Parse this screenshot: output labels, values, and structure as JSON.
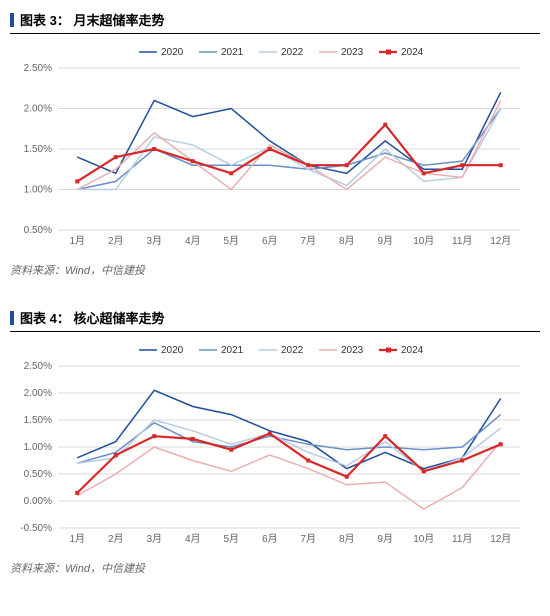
{
  "charts": [
    {
      "title_prefix": "图表 3：",
      "title": "月末超储率走势",
      "source": "资料来源：Wind，中信建投",
      "type": "line",
      "categories": [
        "1月",
        "2月",
        "3月",
        "4月",
        "5月",
        "6月",
        "7月",
        "8月",
        "9月",
        "10月",
        "11月",
        "12月"
      ],
      "ylim": [
        0.5,
        2.5
      ],
      "ytick_step": 0.5,
      "ysuffix": "%",
      "grid_color": "#d9d9d9",
      "background_color": "#ffffff",
      "title_bar_color": "#1f4e9c",
      "title_fontsize": 13,
      "label_fontsize": 10,
      "series": [
        {
          "name": "2020",
          "color": "#1f4e9c",
          "line_width": 1.5,
          "marker": "none",
          "values": [
            1.4,
            1.2,
            2.1,
            1.9,
            2.0,
            1.6,
            1.3,
            1.2,
            1.6,
            1.25,
            1.25,
            2.2
          ]
        },
        {
          "name": "2021",
          "color": "#6b8fc9",
          "line_width": 1.5,
          "marker": "none",
          "values": [
            1.0,
            1.1,
            1.5,
            1.3,
            1.3,
            1.3,
            1.25,
            1.3,
            1.45,
            1.3,
            1.35,
            2.0
          ]
        },
        {
          "name": "2022",
          "color": "#b8cce4",
          "line_width": 1.5,
          "marker": "none",
          "values": [
            1.0,
            1.0,
            1.65,
            1.55,
            1.3,
            1.52,
            1.25,
            1.05,
            1.5,
            1.1,
            1.15,
            2.0
          ]
        },
        {
          "name": "2023",
          "color": "#e9b0b0",
          "line_width": 1.5,
          "marker": "none",
          "values": [
            1.0,
            1.25,
            1.7,
            1.35,
            1.0,
            1.55,
            1.3,
            1.0,
            1.4,
            1.2,
            1.15,
            2.1
          ]
        },
        {
          "name": "2024",
          "color": "#d92626",
          "line_width": 2.2,
          "marker": "square",
          "marker_size": 4,
          "values": [
            1.1,
            1.4,
            1.5,
            1.35,
            1.2,
            1.5,
            1.3,
            1.3,
            1.8,
            1.2,
            1.3,
            1.3
          ]
        }
      ]
    },
    {
      "title_prefix": "图表 4：",
      "title": "核心超储率走势",
      "source": "资料来源：Wind，中信建投",
      "type": "line",
      "categories": [
        "1月",
        "2月",
        "3月",
        "4月",
        "5月",
        "6月",
        "7月",
        "8月",
        "9月",
        "10月",
        "11月",
        "12月"
      ],
      "ylim": [
        -0.5,
        2.5
      ],
      "ytick_step": 0.5,
      "ysuffix": "%",
      "grid_color": "#d9d9d9",
      "background_color": "#ffffff",
      "title_bar_color": "#1f4e9c",
      "title_fontsize": 13,
      "label_fontsize": 10,
      "series": [
        {
          "name": "2020",
          "color": "#1f4e9c",
          "line_width": 1.5,
          "marker": "none",
          "values": [
            0.8,
            1.1,
            2.05,
            1.75,
            1.6,
            1.3,
            1.1,
            0.6,
            0.9,
            0.6,
            0.8,
            1.9
          ]
        },
        {
          "name": "2021",
          "color": "#6b8fc9",
          "line_width": 1.5,
          "marker": "none",
          "values": [
            0.7,
            0.9,
            1.45,
            1.1,
            1.0,
            1.2,
            1.05,
            0.95,
            1.0,
            0.95,
            1.0,
            1.6
          ]
        },
        {
          "name": "2022",
          "color": "#b8cce4",
          "line_width": 1.5,
          "marker": "none",
          "values": [
            0.7,
            0.8,
            1.5,
            1.3,
            1.05,
            1.25,
            0.9,
            0.65,
            1.1,
            0.55,
            0.8,
            1.35
          ]
        },
        {
          "name": "2023",
          "color": "#e9b0b0",
          "line_width": 1.5,
          "marker": "none",
          "values": [
            0.1,
            0.5,
            1.0,
            0.75,
            0.55,
            0.85,
            0.6,
            0.3,
            0.35,
            -0.15,
            0.25,
            1.1
          ]
        },
        {
          "name": "2024",
          "color": "#d92626",
          "line_width": 2.2,
          "marker": "square",
          "marker_size": 4,
          "values": [
            0.15,
            0.85,
            1.2,
            1.15,
            0.95,
            1.25,
            0.75,
            0.45,
            1.2,
            0.55,
            0.75,
            1.05
          ]
        }
      ]
    }
  ]
}
